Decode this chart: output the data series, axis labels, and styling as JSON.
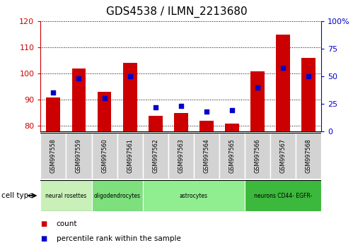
{
  "title": "GDS4538 / ILMN_2213680",
  "samples": [
    "GSM997558",
    "GSM997559",
    "GSM997560",
    "GSM997561",
    "GSM997562",
    "GSM997563",
    "GSM997564",
    "GSM997565",
    "GSM997566",
    "GSM997567",
    "GSM997568"
  ],
  "counts": [
    91,
    102,
    93,
    104,
    84,
    85,
    82,
    81,
    101,
    115,
    106
  ],
  "percentile_ranks": [
    35,
    48,
    30,
    50,
    22,
    23,
    18,
    19,
    40,
    58,
    50
  ],
  "ylim_left": [
    78,
    120
  ],
  "ylim_right": [
    0,
    100
  ],
  "yticks_left": [
    80,
    90,
    100,
    110,
    120
  ],
  "yticks_right": [
    0,
    25,
    50,
    75,
    100
  ],
  "bar_color": "#cc0000",
  "dot_color": "#0000cc",
  "bar_width": 0.55,
  "count_label": "count",
  "pct_label": "percentile rank within the sample",
  "cell_type_label": "cell type",
  "bg_color": "#ffffff",
  "tick_color_left": "#cc0000",
  "tick_color_right": "#0000cc",
  "sample_box_color": "#d3d3d3",
  "cell_groups": [
    {
      "label": "neural rosettes",
      "start": 0,
      "end": 2,
      "color": "#c8f0b8"
    },
    {
      "label": "oligodendrocytes",
      "start": 2,
      "end": 4,
      "color": "#7de07d"
    },
    {
      "label": "astrocytes",
      "start": 4,
      "end": 8,
      "color": "#90ee90"
    },
    {
      "label": "neurons CD44- EGFR-",
      "start": 8,
      "end": 11,
      "color": "#3cb83c"
    }
  ]
}
